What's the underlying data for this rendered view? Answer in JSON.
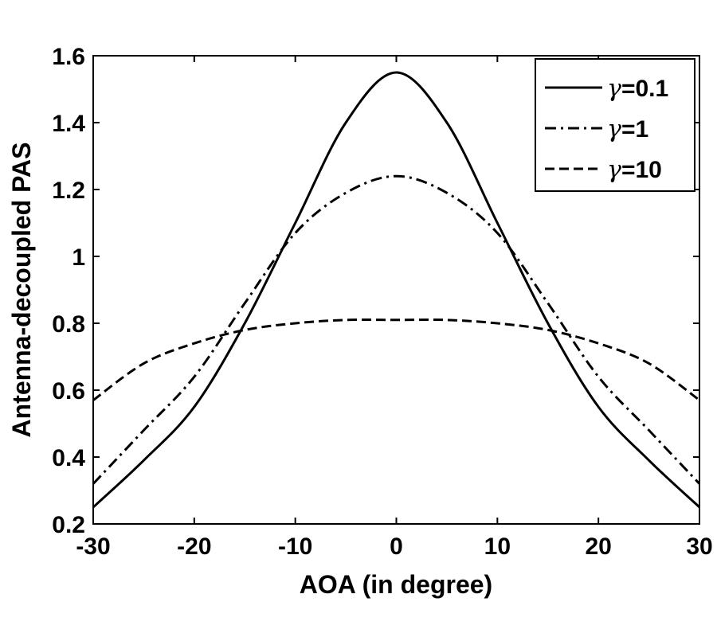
{
  "chart_data": {
    "type": "line",
    "title": "",
    "xlabel": "AOA (in degree)",
    "ylabel": "Antenna-decoupled PAS",
    "xlim": [
      -30,
      30
    ],
    "ylim": [
      0.2,
      1.6
    ],
    "xticks": [
      -30,
      -20,
      -10,
      0,
      10,
      20,
      30
    ],
    "yticks": [
      0.2,
      0.4,
      0.6,
      0.8,
      1,
      1.2,
      1.4,
      1.6
    ],
    "xtick_labels": [
      "-30",
      "-20",
      "-10",
      "0",
      "10",
      "20",
      "30"
    ],
    "ytick_labels": [
      "0.2",
      "0.4",
      "0.6",
      "0.8",
      "1",
      "1.2",
      "1.4",
      "1.6"
    ],
    "grid": false,
    "legend_position": "top-right",
    "x": [
      -30,
      -25,
      -20,
      -15,
      -10,
      -5,
      0,
      5,
      10,
      15,
      20,
      25,
      30
    ],
    "series": [
      {
        "name": "γ=0.1",
        "symbol": "γ",
        "value_label": "=0.1",
        "dash": "solid",
        "values": [
          0.25,
          0.39,
          0.55,
          0.8,
          1.1,
          1.4,
          1.55,
          1.4,
          1.1,
          0.8,
          0.55,
          0.39,
          0.25
        ]
      },
      {
        "name": "γ=1",
        "symbol": "γ",
        "value_label": "=1",
        "dash": "dashdot",
        "values": [
          0.32,
          0.48,
          0.64,
          0.86,
          1.07,
          1.19,
          1.24,
          1.19,
          1.07,
          0.86,
          0.64,
          0.48,
          0.32
        ]
      },
      {
        "name": "γ=10",
        "symbol": "γ",
        "value_label": "=10",
        "dash": "dashed",
        "values": [
          0.57,
          0.68,
          0.74,
          0.78,
          0.8,
          0.81,
          0.81,
          0.81,
          0.8,
          0.78,
          0.74,
          0.68,
          0.57
        ]
      }
    ]
  }
}
